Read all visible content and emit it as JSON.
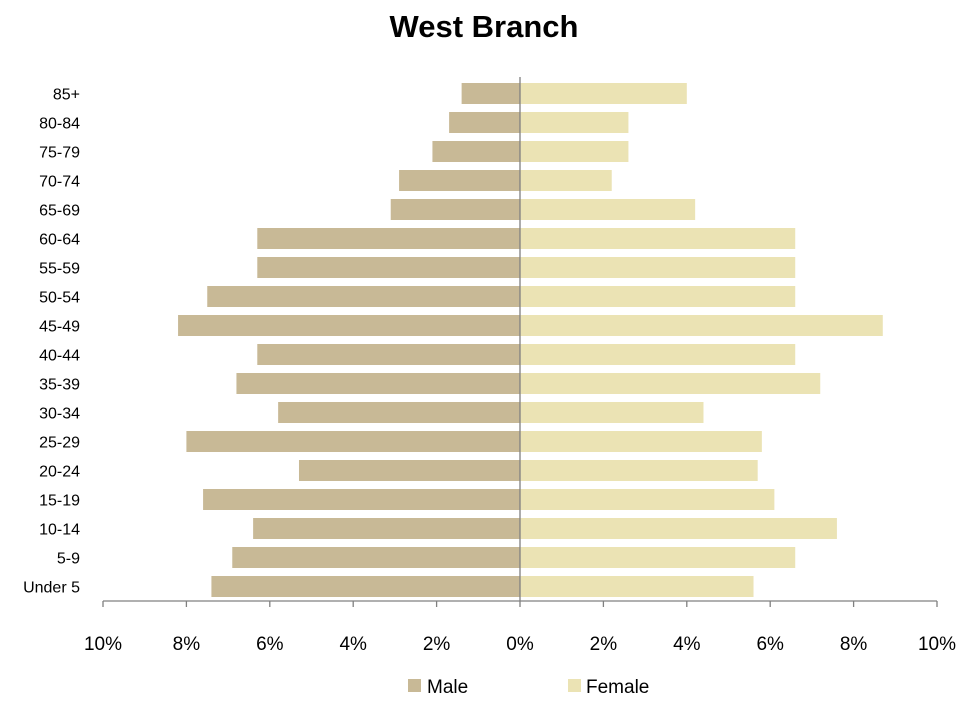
{
  "chart_data": {
    "type": "bar",
    "orientation": "horizontal",
    "title": "West Branch",
    "categories": [
      "Under 5",
      "5-9",
      "10-14",
      "15-19",
      "20-24",
      "25-29",
      "30-34",
      "35-39",
      "40-44",
      "45-49",
      "50-54",
      "55-59",
      "60-64",
      "65-69",
      "70-74",
      "75-79",
      "80-84",
      "85+"
    ],
    "series": [
      {
        "name": "Male",
        "color": "#c8b996",
        "values": [
          7.4,
          6.9,
          6.4,
          7.6,
          5.3,
          8.0,
          5.8,
          6.8,
          6.3,
          8.2,
          7.5,
          6.3,
          6.3,
          3.1,
          2.9,
          2.1,
          1.7,
          1.4
        ]
      },
      {
        "name": "Female",
        "color": "#ebe3b4",
        "values": [
          5.6,
          6.6,
          7.6,
          6.1,
          5.7,
          5.8,
          4.4,
          7.2,
          6.6,
          8.7,
          6.6,
          6.6,
          6.6,
          4.2,
          2.2,
          2.6,
          2.6,
          4.0
        ]
      }
    ],
    "xlim": [
      -10,
      10
    ],
    "xticks": [
      -10,
      -8,
      -6,
      -4,
      -2,
      0,
      2,
      4,
      6,
      8,
      10
    ],
    "xtick_labels": [
      "10%",
      "8%",
      "6%",
      "4%",
      "2%",
      "0%",
      "2%",
      "4%",
      "6%",
      "8%",
      "10%"
    ],
    "unit": "%",
    "grid": false,
    "legend_position": "bottom",
    "axis_color": "#808080"
  }
}
